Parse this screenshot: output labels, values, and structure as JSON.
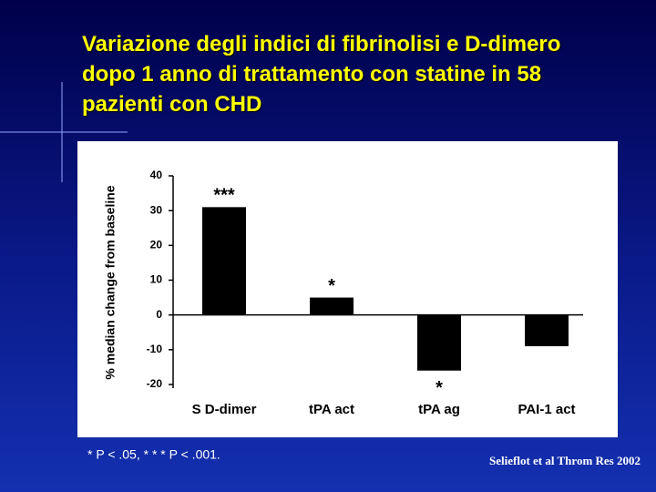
{
  "chart_data": {
    "type": "bar",
    "title": "Variazione degli indici di fibrinolisi e D-dimero dopo 1 anno di trattamento con statine in 58 pazienti con CHD",
    "y_label": "% median change from baseline",
    "categories": [
      "S D-dimer",
      "tPA act",
      "tPA ag",
      "PAI-1 act"
    ],
    "values": [
      31,
      5,
      -16,
      -9
    ],
    "significance": [
      "***",
      "*",
      "*",
      null
    ],
    "color": "#000000",
    "ylim": [
      -20,
      40
    ],
    "yticks": [
      40,
      30,
      20,
      10,
      0,
      -10,
      -20
    ],
    "footnote": "* P < .05, * * * P < .001.",
    "source": "Selieflot et al Throm Res 2002"
  }
}
